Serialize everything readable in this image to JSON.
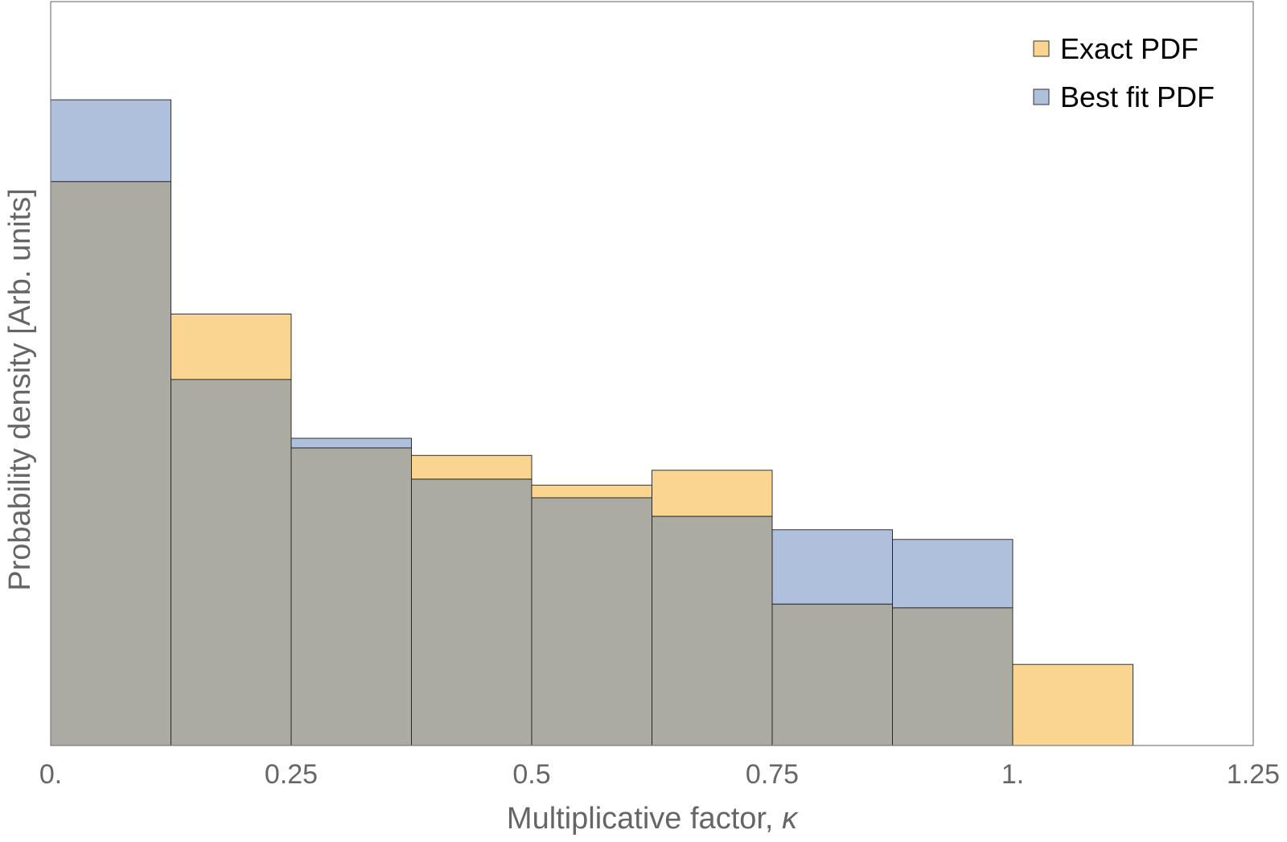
{
  "chart_data": {
    "type": "bar",
    "subtype": "overlapping-histogram",
    "title": "",
    "xlabel": "Multiplicative factor, ",
    "xlabel_symbol": "κ",
    "ylabel": "Probability density [Arb. units]",
    "xlim": [
      0,
      1.25
    ],
    "ylim": [
      0,
      1
    ],
    "x_ticks": [
      {
        "value": 0,
        "label": "0."
      },
      {
        "value": 0.25,
        "label": "0.25"
      },
      {
        "value": 0.5,
        "label": "0.5"
      },
      {
        "value": 0.75,
        "label": "0.75"
      },
      {
        "value": 1.0,
        "label": "1."
      },
      {
        "value": 1.25,
        "label": "1.25"
      }
    ],
    "y_ticks_shown": false,
    "grid": false,
    "legend_position": "top-right",
    "bin_edges": [
      0,
      0.125,
      0.25,
      0.375,
      0.5,
      0.625,
      0.75,
      0.875,
      1.0,
      1.125
    ],
    "overlap_color": "#acaba2",
    "series": [
      {
        "name": "Exact PDF",
        "color": "#fad590",
        "values": [
          0.758,
          0.58,
          0.4,
          0.39,
          0.35,
          0.37,
          0.19,
          0.185,
          0.109
        ]
      },
      {
        "name": "Best fit PDF",
        "color": "#afc0dc",
        "values": [
          0.868,
          0.492,
          0.413,
          0.358,
          0.333,
          0.308,
          0.29,
          0.277,
          0
        ]
      }
    ]
  }
}
